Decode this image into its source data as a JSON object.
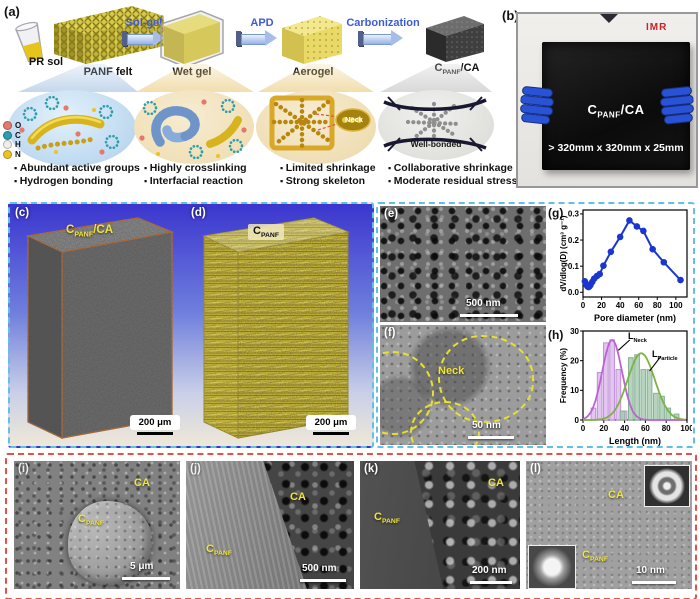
{
  "shared": {
    "cpanf_pre": "C",
    "cpanf_sub": "PANF",
    "ca_suffix": "/CA",
    "ca": "CA"
  },
  "panel_a": {
    "tag": "(a)",
    "pr_sol": "PR sol",
    "stages": [
      "PANF felt",
      "Wet gel",
      "Aerogel"
    ],
    "arrows": [
      "Sol-gel",
      "APD",
      "Carbonization"
    ],
    "legend": [
      {
        "symbol": "O",
        "color": "#e4796b"
      },
      {
        "symbol": "C",
        "color": "#2d9dab"
      },
      {
        "symbol": "H",
        "color": "#f2ecf2"
      },
      {
        "symbol": "N",
        "color": "#eec223"
      }
    ],
    "neck": "Neck",
    "well_bonded": "Well-bonded",
    "bullets": [
      [
        "Abundant active groups",
        "Hydrogen bonding"
      ],
      [
        "Highly crosslinking",
        "Interfacial reaction"
      ],
      [
        "Limited shrinkage",
        "Strong skeleton"
      ],
      [
        "Collaborative shrinkage",
        "Moderate residual stress"
      ]
    ]
  },
  "panel_b": {
    "tag": "(b)",
    "logo": "IMR",
    "size_text": "> 320mm x 320mm x 25mm"
  },
  "panel_c": {
    "tag": "(c)",
    "scale": "200 μm"
  },
  "panel_d": {
    "tag": "(d)",
    "scale": "200 μm"
  },
  "panel_e": {
    "tag": "(e)",
    "scale": "500 nm"
  },
  "panel_f": {
    "tag": "(f)",
    "neck": "Neck",
    "scale": "50 nm"
  },
  "panel_g": {
    "tag": "(g)"
  },
  "panel_h": {
    "tag": "(h)",
    "neck_pre": "L",
    "neck_sub": "Neck",
    "particle_pre": "L",
    "particle_sub": "Particle"
  },
  "panel_i": {
    "tag": "(i)",
    "scale": "5 μm"
  },
  "panel_j": {
    "tag": "(j)",
    "scale": "500 nm"
  },
  "panel_k": {
    "tag": "(k)",
    "scale": "200 nm"
  },
  "panel_l": {
    "tag": "(l)",
    "scale": "10 nm"
  },
  "chart_data": [
    {
      "type": "line",
      "title": "",
      "xlabel": "Pore diameter (nm)",
      "ylabel": "dV/dlog(D) (cm³ g⁻¹)",
      "xlim": [
        0,
        112
      ],
      "ylim": [
        -0.018,
        0.315
      ],
      "xticks": [
        0,
        20,
        40,
        60,
        80,
        100
      ],
      "yticks": [
        0.0,
        0.1,
        0.2,
        0.3
      ],
      "ydecimals": 1,
      "grid": false,
      "line_color": "#1b35cf",
      "x": [
        2,
        3,
        4,
        5,
        6,
        7,
        8,
        10,
        12,
        15,
        18,
        22,
        30,
        40,
        50,
        58,
        65,
        75,
        87,
        105
      ],
      "y": [
        0.042,
        0.034,
        0.027,
        0.022,
        0.02,
        0.023,
        0.028,
        0.04,
        0.052,
        0.062,
        0.07,
        0.102,
        0.155,
        0.212,
        0.275,
        0.252,
        0.235,
        0.165,
        0.115,
        0.047
      ]
    },
    {
      "type": "bar",
      "title": "",
      "xlabel": "Length (nm)",
      "ylabel": "Frequency (%)",
      "xlim": [
        0,
        100
      ],
      "ylim": [
        0,
        30
      ],
      "xticks": [
        0,
        20,
        40,
        60,
        80,
        100
      ],
      "yticks": [
        0,
        10,
        20,
        30
      ],
      "ydecimals": 0,
      "grid": false,
      "series": [
        {
          "name": "L_Neck",
          "bar_color": "#debcec",
          "bar_edge": "#bf8fd8",
          "curve_color": "#b964d2",
          "bar_width": 4.5,
          "centers": [
            10,
            16,
            22,
            28,
            34,
            40
          ],
          "values": [
            4,
            16,
            26,
            27,
            17,
            3
          ],
          "curve": {
            "mean": 28,
            "sd": 9.5,
            "amp": 27
          }
        },
        {
          "name": "L_Particle",
          "bar_color": "#a8cbb2",
          "bar_edge": "#86b295",
          "curve_color": "#7cb342",
          "bar_width": 4.5,
          "centers": [
            38,
            46,
            52,
            58,
            64,
            70,
            76,
            82,
            90
          ],
          "values": [
            3,
            21,
            22,
            17,
            17,
            9,
            8,
            4,
            2
          ],
          "curve": {
            "mean": 56,
            "sd": 13,
            "amp": 22.5
          }
        }
      ],
      "annotations": [
        {
          "x1": 45,
          "y1": 27,
          "x2": 34,
          "y2": 23.5
        },
        {
          "x1": 75,
          "y1": 21.5,
          "x2": 64,
          "y2": 16.5
        }
      ]
    }
  ]
}
